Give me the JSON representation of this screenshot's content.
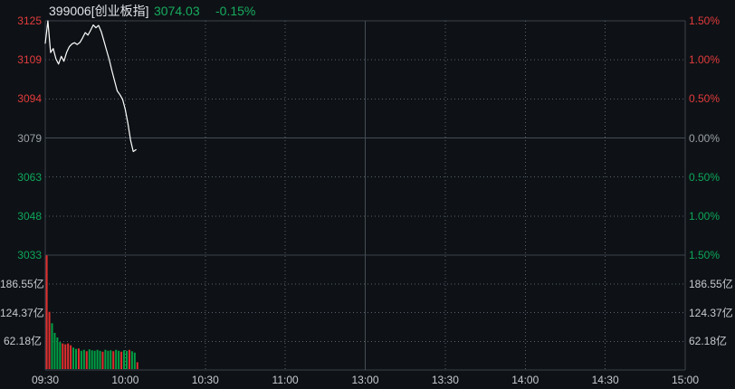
{
  "header": {
    "symbol": "399006[创业板指]",
    "price": "3074.03",
    "change_pct": "-0.15%"
  },
  "colors": {
    "up": "#e33b3c",
    "down": "#0da75a",
    "flat": "#9aa0a8",
    "volume_up": "#e02f2f",
    "volume_down": "#00a045",
    "price_line": "#ffffff",
    "background": "#0e1216",
    "grid_solid": "#454c56",
    "grid_border": "#3c434c",
    "grid_dotted": "#58606c",
    "header_value": "#17ab5e"
  },
  "chart_data": {
    "type": "line",
    "title": "399006[创业板指] intraday price with minute volume",
    "legend_position": "none",
    "grid": "dotted horizontal at each tick, dotted vertical each 30min, solid midday divider",
    "x_axis": {
      "labels": [
        "09:30",
        "10:00",
        "10:30",
        "11:00",
        "13:00",
        "13:30",
        "14:00",
        "14:30",
        "15:00"
      ],
      "label_minutes": [
        0,
        30,
        60,
        90,
        120,
        150,
        180,
        210,
        240
      ],
      "total_minutes": 240,
      "divider_minute": 120
    },
    "price_axis": {
      "max": 3124.83,
      "min": 3032.47,
      "prev_close": 3078.65,
      "left_ticks": [
        {
          "label": "3125",
          "tone": "up"
        },
        {
          "label": "3109",
          "tone": "up"
        },
        {
          "label": "3094",
          "tone": "up"
        },
        {
          "label": "3079",
          "tone": "flat"
        },
        {
          "label": "3063",
          "tone": "down"
        },
        {
          "label": "3048",
          "tone": "down"
        },
        {
          "label": "3033",
          "tone": "down"
        }
      ],
      "right_ticks": [
        {
          "label": "1.50%",
          "tone": "up"
        },
        {
          "label": "1.00%",
          "tone": "up"
        },
        {
          "label": "0.50%",
          "tone": "up"
        },
        {
          "label": "0.00%",
          "tone": "flat"
        },
        {
          "label": "0.50%",
          "tone": "down"
        },
        {
          "label": "1.00%",
          "tone": "down"
        },
        {
          "label": "1.50%",
          "tone": "down"
        }
      ]
    },
    "volume_axis": {
      "max": 248.72,
      "unit": "亿",
      "ticks": [
        "186.55亿",
        "124.37亿",
        "62.18亿"
      ]
    },
    "series": {
      "minutes_per_point": 1,
      "price": [
        3116.0,
        3124.8,
        3112.3,
        3113.9,
        3109.8,
        3107.8,
        3110.8,
        3108.9,
        3112.4,
        3114.6,
        3115.7,
        3116.2,
        3115.5,
        3116.3,
        3118.1,
        3120.2,
        3119.2,
        3121.1,
        3123.2,
        3122.1,
        3123.0,
        3120.5,
        3116.9,
        3113.1,
        3109.5,
        3105.2,
        3101.1,
        3097.2,
        3095.7,
        3093.9,
        3089.9,
        3084.4,
        3077.7,
        3073.3,
        3074.03
      ],
      "volume": [
        248,
        125,
        100,
        79,
        69,
        59,
        56,
        54,
        56,
        52,
        47,
        44,
        45,
        40,
        42,
        39,
        43,
        41,
        40,
        42,
        40,
        38,
        42,
        40,
        41,
        39,
        42,
        40,
        38,
        41,
        40,
        42,
        39,
        36,
        15
      ],
      "volume_dir": [
        "up",
        "up",
        "down",
        "down",
        "down",
        "down",
        "up",
        "up",
        "up",
        "up",
        "down",
        "down",
        "up",
        "down",
        "down",
        "up",
        "down",
        "down",
        "down",
        "down",
        "down",
        "up",
        "down",
        "down",
        "down",
        "up",
        "down",
        "down",
        "up",
        "down",
        "down",
        "up",
        "down",
        "down",
        "up"
      ]
    }
  }
}
